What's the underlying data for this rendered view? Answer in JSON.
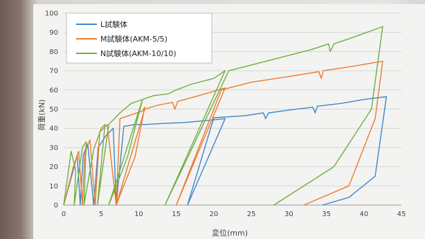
{
  "chart_data": {
    "type": "line",
    "title": "",
    "xlabel": "変位(mm)",
    "ylabel": "荷重(kN)",
    "xlim": [
      0,
      45
    ],
    "ylim": [
      0,
      100
    ],
    "x_ticks": [
      0,
      5,
      10,
      15,
      20,
      25,
      30,
      35,
      40,
      45
    ],
    "y_ticks": [
      0,
      10,
      20,
      30,
      40,
      50,
      60,
      70,
      80,
      90,
      100
    ],
    "grid": "horizontal",
    "legend_position": "top-left",
    "colors": {
      "L": "#3e86c8",
      "M": "#ec7a2c",
      "N": "#6fae3d"
    },
    "series": [
      {
        "name": "L試験体",
        "key": "L",
        "points": [
          [
            0,
            0
          ],
          [
            1.2,
            17
          ],
          [
            1.8,
            26
          ],
          [
            2.2,
            0
          ],
          [
            2.6,
            26
          ],
          [
            3.2,
            32
          ],
          [
            4,
            0
          ],
          [
            4.6,
            30
          ],
          [
            5.6,
            36
          ],
          [
            6.6,
            40
          ],
          [
            7,
            0
          ],
          [
            8,
            41
          ],
          [
            9.5,
            42
          ],
          [
            11,
            42
          ],
          [
            13,
            42.5
          ],
          [
            16,
            43
          ],
          [
            19,
            44
          ],
          [
            21.5,
            45
          ],
          [
            16.5,
            0
          ],
          [
            20,
            45.5
          ],
          [
            24,
            46.5
          ],
          [
            26.6,
            48
          ],
          [
            26.9,
            45
          ],
          [
            27.3,
            48
          ],
          [
            30,
            49.5
          ],
          [
            33.2,
            51
          ],
          [
            33.5,
            48
          ],
          [
            33.8,
            51.5
          ],
          [
            37,
            53
          ],
          [
            40,
            55
          ],
          [
            43,
            56.5
          ],
          [
            41.5,
            15
          ],
          [
            38,
            4
          ],
          [
            34.5,
            0
          ]
        ]
      },
      {
        "name": "M試験体(AKM-5/5)",
        "key": "M",
        "points": [
          [
            0,
            0
          ],
          [
            1.3,
            20
          ],
          [
            2,
            28
          ],
          [
            2.5,
            0
          ],
          [
            2.8,
            27
          ],
          [
            3.5,
            34
          ],
          [
            4.2,
            0
          ],
          [
            4.8,
            38
          ],
          [
            5.8,
            42
          ],
          [
            7,
            0
          ],
          [
            7.5,
            45
          ],
          [
            9,
            47
          ],
          [
            10.5,
            49
          ],
          [
            10.8,
            51
          ],
          [
            9.5,
            25
          ],
          [
            7,
            0
          ],
          [
            10.8,
            50
          ],
          [
            12.5,
            52
          ],
          [
            14.5,
            53.5
          ],
          [
            14.8,
            50
          ],
          [
            15.2,
            54
          ],
          [
            18,
            57
          ],
          [
            21.5,
            61
          ],
          [
            15,
            0
          ],
          [
            21,
            60
          ],
          [
            25,
            64
          ],
          [
            30,
            67
          ],
          [
            34,
            69.5
          ],
          [
            34.3,
            66
          ],
          [
            34.6,
            70
          ],
          [
            38,
            72
          ],
          [
            42.5,
            75
          ],
          [
            41.5,
            45
          ],
          [
            38,
            10
          ],
          [
            32,
            0
          ]
        ]
      },
      {
        "name": "N試験体(AKM-10/10)",
        "key": "N",
        "points": [
          [
            0,
            0
          ],
          [
            1,
            28
          ],
          [
            1.6,
            18
          ],
          [
            1.4,
            0
          ],
          [
            2.5,
            30
          ],
          [
            3,
            33
          ],
          [
            2.7,
            0
          ],
          [
            4,
            29
          ],
          [
            5,
            40
          ],
          [
            5.5,
            42
          ],
          [
            4.5,
            0
          ],
          [
            6,
            42
          ],
          [
            7.5,
            48
          ],
          [
            9,
            53
          ],
          [
            10.5,
            55
          ],
          [
            8.5,
            25
          ],
          [
            6,
            0
          ],
          [
            10.5,
            55
          ],
          [
            12,
            57
          ],
          [
            14,
            58
          ],
          [
            15,
            60
          ],
          [
            17,
            63
          ],
          [
            20,
            66
          ],
          [
            21.5,
            70
          ],
          [
            13.5,
            0
          ],
          [
            22,
            70
          ],
          [
            25,
            73
          ],
          [
            29,
            77
          ],
          [
            33,
            81
          ],
          [
            35.3,
            84
          ],
          [
            35.5,
            80
          ],
          [
            36,
            84
          ],
          [
            39,
            88
          ],
          [
            42.5,
            93
          ],
          [
            41,
            50
          ],
          [
            36,
            20
          ],
          [
            28,
            0
          ]
        ]
      }
    ]
  }
}
